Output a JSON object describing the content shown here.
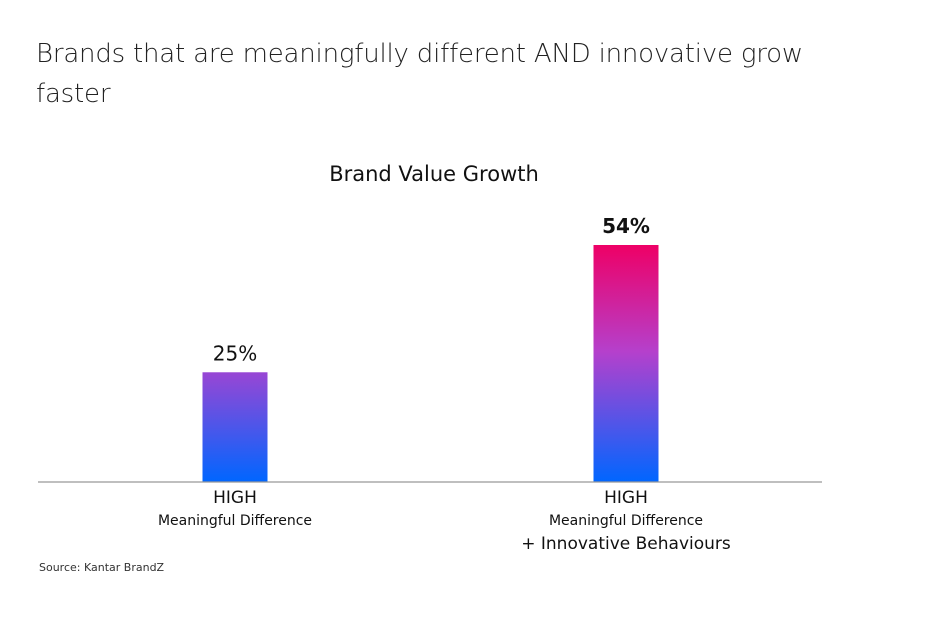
{
  "headline": "Brands that are meaningfully different AND innovative grow faster",
  "source": "Source: Kantar BrandZ",
  "colors": {
    "gradient_top": "#ee0066",
    "gradient_mid": "#b540cc",
    "gradient_bottom": "#0066ff",
    "axis": "#999999"
  },
  "chart_data": {
    "type": "bar",
    "title": "Brand Value Growth",
    "categories": [
      {
        "line1": "HIGH",
        "line2": "Meaningful Difference",
        "line3": ""
      },
      {
        "line1": "HIGH",
        "line2": "Meaningful Difference",
        "line3": "+ Innovative Behaviours"
      }
    ],
    "values": [
      25,
      54
    ],
    "data_labels": [
      "25%",
      "54%"
    ],
    "unit": "%",
    "ylim": [
      0,
      54
    ],
    "grid": false,
    "legend": "none"
  }
}
